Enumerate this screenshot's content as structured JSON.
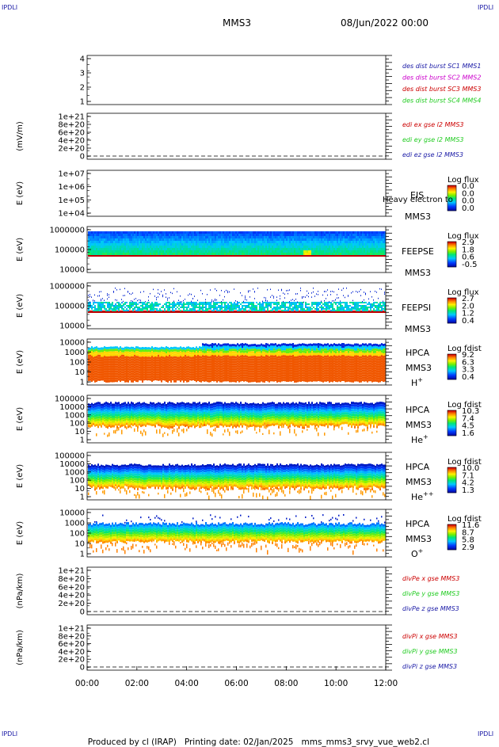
{
  "header": {
    "corner_tl": "IPDLI",
    "corner_tr": "IPDLI",
    "corner_bl": "IPDLI",
    "corner_br": "IPDLI",
    "spacecraft": "MMS3",
    "datetime": "08/Jun/2022 00:00"
  },
  "footer": {
    "produced_by": "Produced by cl (IRAP)",
    "printing_date": "Printing date: 02/Jan/2025",
    "file": "mms_mms3_srvy_vue_web2.cl"
  },
  "colors": {
    "blue": "#1a1aa6",
    "magenta": "#cc00cc",
    "red": "#cc0000",
    "green": "#22cc22"
  },
  "chart_data": {
    "type": "heatmap",
    "time_axis": {
      "ticks": [
        "00:00",
        "02:00",
        "04:00",
        "06:00",
        "08:00",
        "10:00",
        "12:00"
      ],
      "range_hours": [
        0,
        12
      ]
    },
    "panels": [
      {
        "id": "dist",
        "kind": "line",
        "ylabel": "",
        "yticks": [
          "4",
          "3",
          "2",
          "1"
        ],
        "legend": [
          {
            "text": "des dist burst SC1 MMS1",
            "color": "blue"
          },
          {
            "text": "des dist burst SC2 MMS2",
            "color": "magenta"
          },
          {
            "text": "des dist burst SC3 MMS3",
            "color": "red"
          },
          {
            "text": "des dist burst SC4 MMS4",
            "color": "green"
          }
        ]
      },
      {
        "id": "edi",
        "kind": "line",
        "ylabel": "(mV/m)",
        "yticks": [
          "1e+21",
          "8e+20",
          "6e+20",
          "4e+20",
          "2e+20",
          "0"
        ],
        "legend": [
          {
            "text": "edi ex gse l2 MMS3",
            "color": "red"
          },
          {
            "text": "edi ey gse l2 MMS3",
            "color": "green"
          },
          {
            "text": "edi ez gse l2 MMS3",
            "color": "blue"
          }
        ]
      },
      {
        "id": "eis",
        "kind": "spectrogram",
        "ylabel": "E (eV)",
        "yticks": [
          "1e+07",
          "1e+06",
          "1e+05",
          "1e+04"
        ],
        "labels": [
          "EIS",
          "MMS3"
        ],
        "overlay_text": "Heavy electron to",
        "cbar_title": "Log flux",
        "cbar_ticks": [
          "0.0",
          "0.0",
          "0.0",
          "0.0"
        ],
        "fill": "none"
      },
      {
        "id": "feepse",
        "kind": "spectrogram",
        "ylabel": "E (eV)",
        "yticks": [
          "1000000",
          "100000",
          "10000"
        ],
        "labels": [
          "FEEPSE",
          "MMS3"
        ],
        "cbar_title": "Log flux",
        "cbar_ticks": [
          "2.9",
          "1.8",
          "0.6",
          "-0.5"
        ],
        "fill": "feepse"
      },
      {
        "id": "feepsi",
        "kind": "spectrogram",
        "ylabel": "E (eV)",
        "yticks": [
          "1000000",
          "100000",
          "10000"
        ],
        "labels": [
          "FEEPSI",
          "MMS3"
        ],
        "cbar_title": "Log flux",
        "cbar_ticks": [
          "2.7",
          "2.0",
          "1.2",
          "0.4"
        ],
        "fill": "feepsi"
      },
      {
        "id": "hpca_h",
        "kind": "spectrogram",
        "ylabel": "E (eV)",
        "yticks": [
          "10000",
          "1000",
          "100",
          "10",
          "1"
        ],
        "labels": [
          "HPCA",
          "MMS3"
        ],
        "species": "H",
        "species_sup": "+",
        "cbar_title": "Log fdist",
        "cbar_ticks": [
          "9.2",
          "6.3",
          "3.3",
          "0.4"
        ],
        "fill": "hpca_h"
      },
      {
        "id": "hpca_he1",
        "kind": "spectrogram",
        "ylabel": "E (eV)",
        "yticks": [
          "100000",
          "10000",
          "1000",
          "100",
          "10",
          "1"
        ],
        "labels": [
          "HPCA",
          "MMS3"
        ],
        "species": "He",
        "species_sup": "+",
        "cbar_title": "Log fdist",
        "cbar_ticks": [
          "10.3",
          "7.4",
          "4.5",
          "1.6"
        ],
        "fill": "hpca_he1"
      },
      {
        "id": "hpca_he2",
        "kind": "spectrogram",
        "ylabel": "E (eV)",
        "yticks": [
          "100000",
          "10000",
          "1000",
          "100",
          "10",
          "1"
        ],
        "labels": [
          "HPCA",
          "MMS3"
        ],
        "species": "He",
        "species_sup": "++",
        "cbar_title": "Log fdist",
        "cbar_ticks": [
          "10.0",
          "7.1",
          "4.2",
          "1.3"
        ],
        "fill": "hpca_he2"
      },
      {
        "id": "hpca_o",
        "kind": "spectrogram",
        "ylabel": "E (eV)",
        "yticks": [
          "10000",
          "1000",
          "100",
          "10",
          "1"
        ],
        "labels": [
          "HPCA",
          "MMS3"
        ],
        "species": "O",
        "species_sup": "+",
        "cbar_title": "Log fdist",
        "cbar_ticks": [
          "11.6",
          "8.7",
          "5.8",
          "2.9"
        ],
        "fill": "hpca_o"
      },
      {
        "id": "divpe",
        "kind": "line",
        "ylabel": "(nPa/km)",
        "yticks": [
          "1e+21",
          "8e+20",
          "6e+20",
          "4e+20",
          "2e+20",
          "0"
        ],
        "legend": [
          {
            "text": "divPe x gse MMS3",
            "color": "red"
          },
          {
            "text": "divPe y gse MMS3",
            "color": "green"
          },
          {
            "text": "divPe z gse MMS3",
            "color": "blue"
          }
        ]
      },
      {
        "id": "divpi",
        "kind": "line",
        "ylabel": "(nPa/km)",
        "yticks": [
          "1e+21",
          "8e+20",
          "6e+20",
          "4e+20",
          "2e+20",
          "0"
        ],
        "legend": [
          {
            "text": "divPi x gse MMS3",
            "color": "red"
          },
          {
            "text": "divPi y gse MMS3",
            "color": "green"
          },
          {
            "text": "divPi z gse MMS3",
            "color": "blue"
          }
        ]
      }
    ]
  }
}
